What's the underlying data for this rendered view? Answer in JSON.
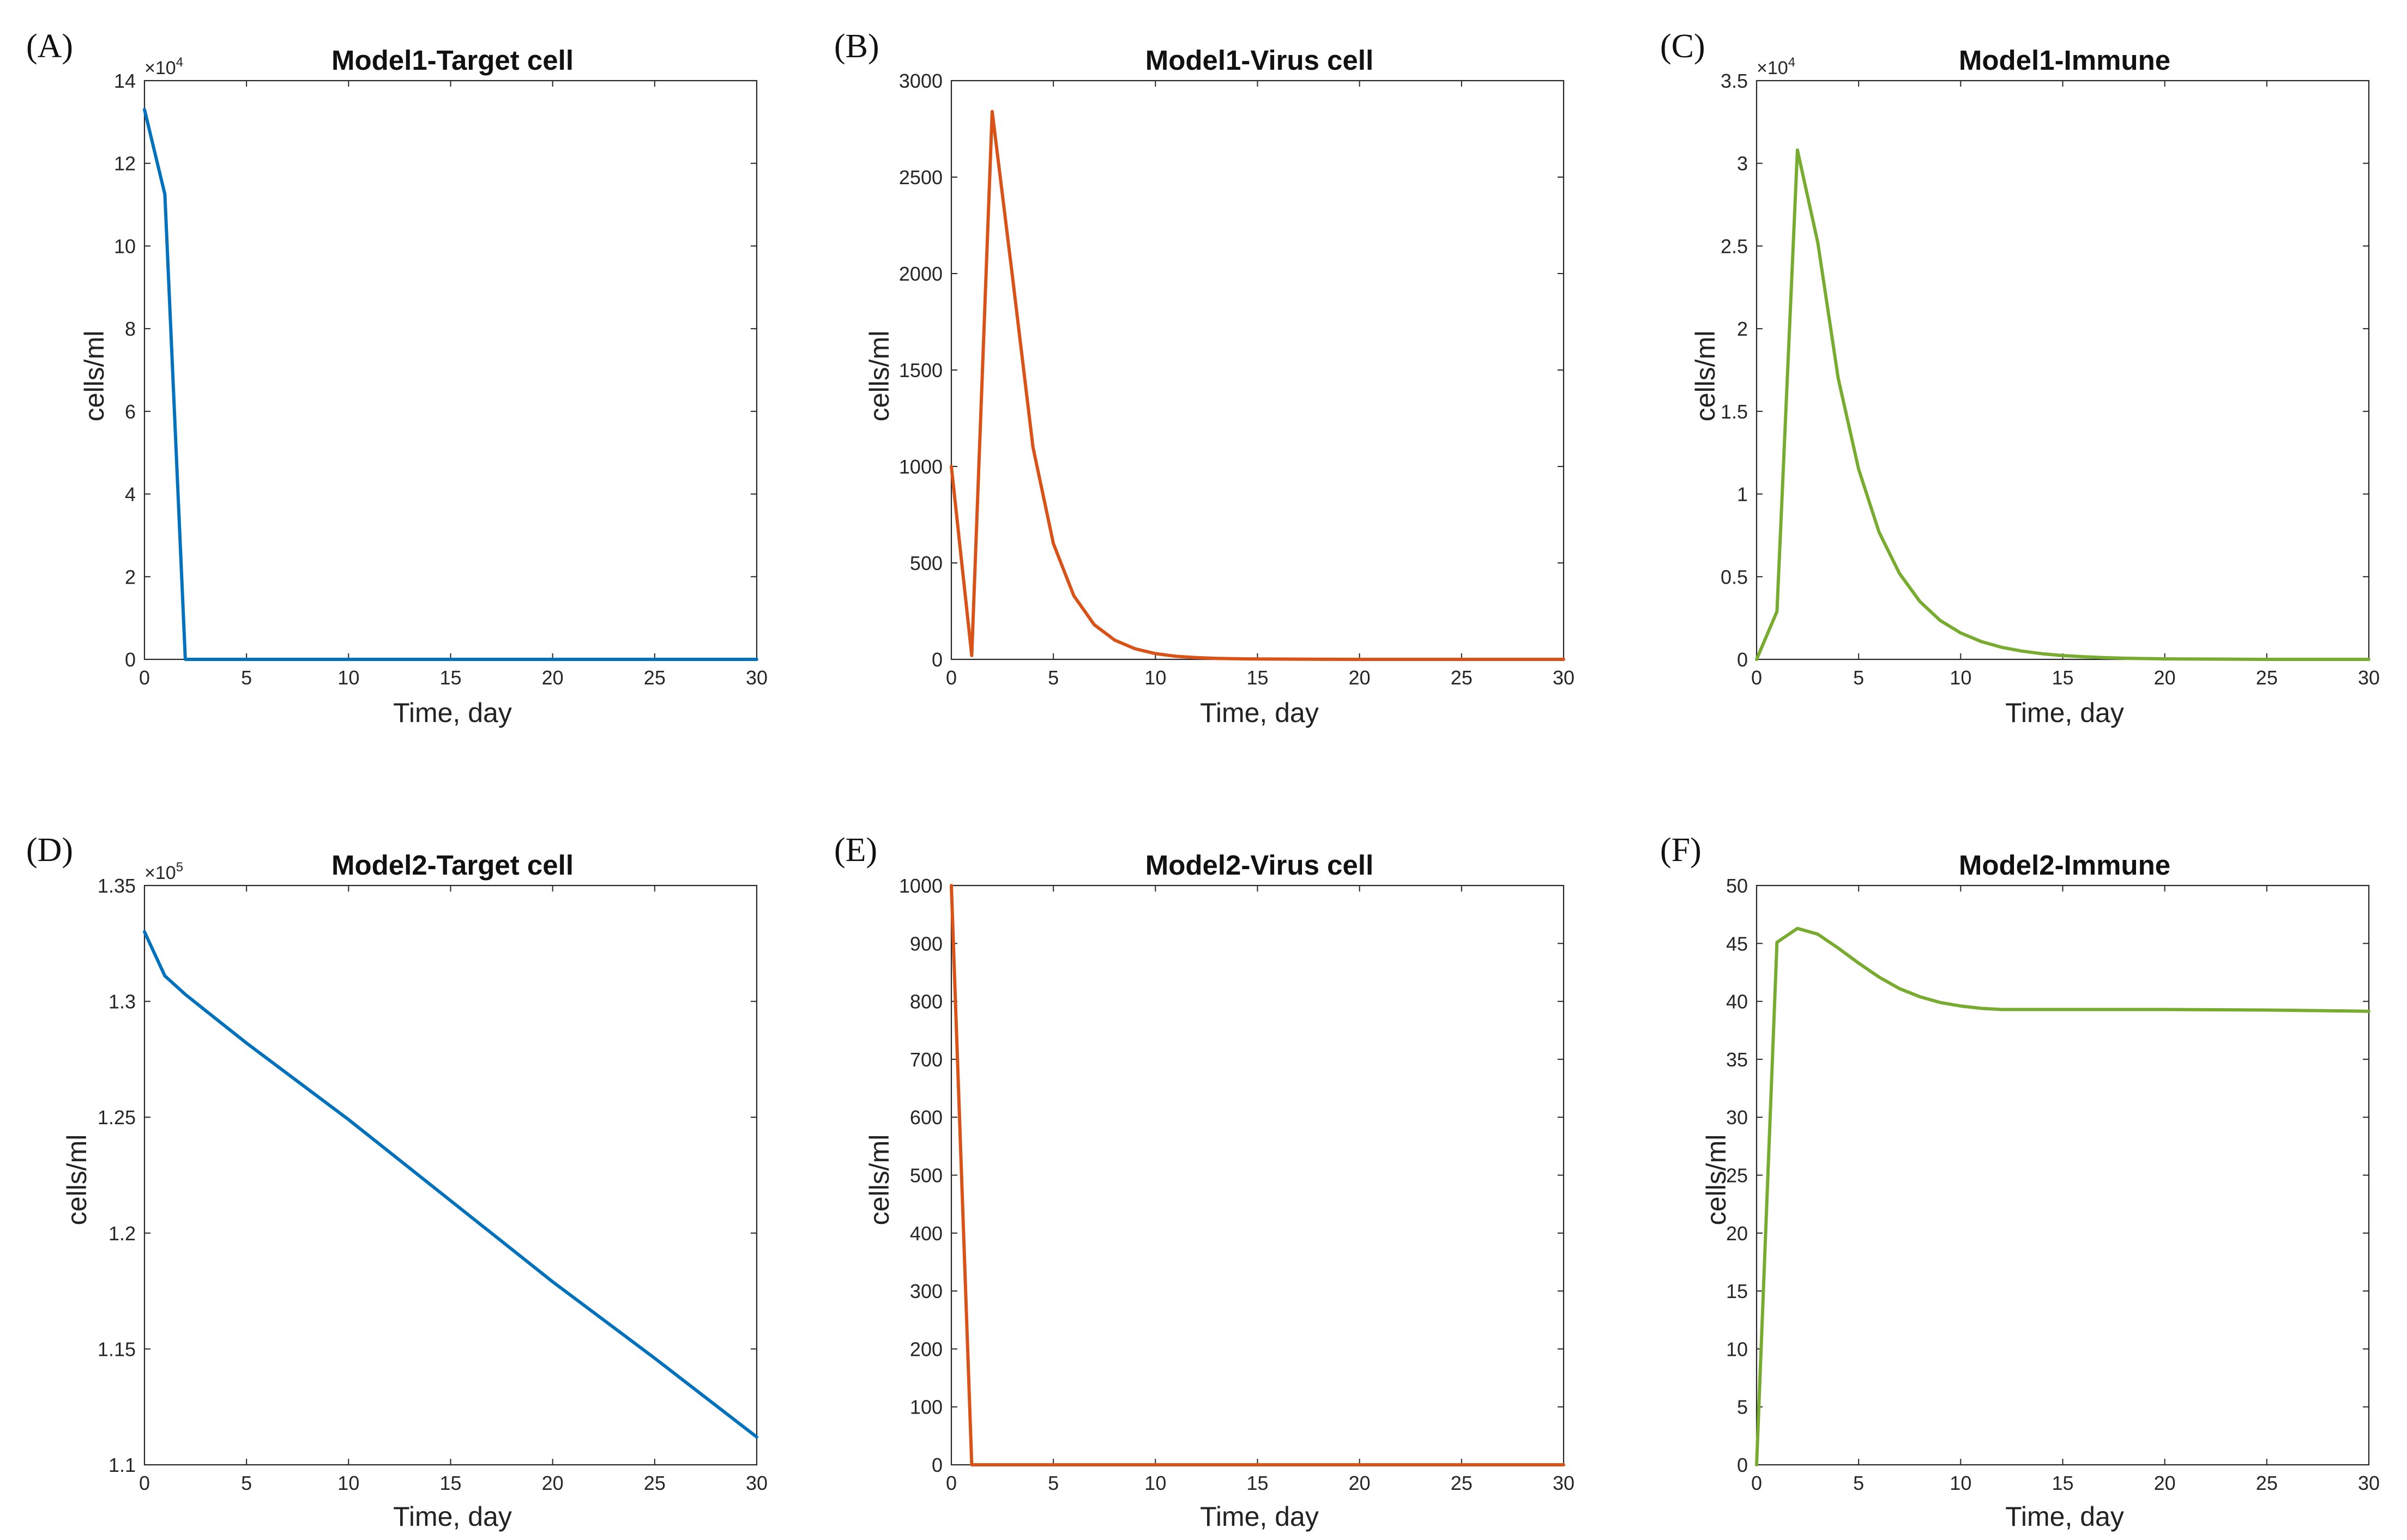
{
  "figure": {
    "panels": [
      {
        "letter": "(A)",
        "title": "Model1-Target cell",
        "ylabel": "cells/ml",
        "xlabel": "Time, day"
      },
      {
        "letter": "(B)",
        "title": "Model1-Virus cell",
        "ylabel": "cells/ml",
        "xlabel": "Time, day"
      },
      {
        "letter": "(C)",
        "title": "Model1-Immune",
        "ylabel": "cells/ml",
        "xlabel": "Time, day"
      },
      {
        "letter": "(D)",
        "title": "Model2-Target cell",
        "ylabel": "cells/ml",
        "xlabel": "Time, day"
      },
      {
        "letter": "(E)",
        "title": "Model2-Virus cell",
        "ylabel": "cells/ml",
        "xlabel": "Time, day"
      },
      {
        "letter": "(F)",
        "title": "Model2-Immune",
        "ylabel": "cells/ml",
        "xlabel": "Time, day"
      }
    ]
  },
  "colors": {
    "blue": "#0072BD",
    "orange": "#D95319",
    "green": "#77AC30",
    "axis": "#262626"
  },
  "chart_data": [
    {
      "type": "line",
      "title": "Model1-Target cell",
      "xlabel": "Time, day",
      "ylabel": "cells/ml",
      "xlim": [
        0,
        30
      ],
      "ylim": [
        0,
        140000
      ],
      "xticks": [
        0,
        5,
        10,
        15,
        20,
        25,
        30
      ],
      "xtick_labels": [
        "0",
        "5",
        "10",
        "15",
        "20",
        "25",
        "30"
      ],
      "yticks": [
        0,
        20000,
        40000,
        60000,
        80000,
        100000,
        120000,
        140000
      ],
      "ytick_labels": [
        "0",
        "2",
        "4",
        "6",
        "8",
        "10",
        "12",
        "14"
      ],
      "exponent_base": "×10",
      "exponent_power": "4",
      "color": "#0072BD",
      "series": [
        {
          "name": "Target cell",
          "x": [
            0,
            1,
            2,
            3,
            30
          ],
          "y": [
            133000,
            112500,
            0,
            0,
            0
          ]
        }
      ]
    },
    {
      "type": "line",
      "title": "Model1-Virus cell",
      "xlabel": "Time, day",
      "ylabel": "cells/ml",
      "xlim": [
        0,
        30
      ],
      "ylim": [
        0,
        3000
      ],
      "xticks": [
        0,
        5,
        10,
        15,
        20,
        25,
        30
      ],
      "xtick_labels": [
        "0",
        "5",
        "10",
        "15",
        "20",
        "25",
        "30"
      ],
      "yticks": [
        0,
        500,
        1000,
        1500,
        2000,
        2500,
        3000
      ],
      "ytick_labels": [
        "0",
        "500",
        "1000",
        "1500",
        "2000",
        "2500",
        "3000"
      ],
      "color": "#D95319",
      "series": [
        {
          "name": "Virus cell",
          "x": [
            0,
            1,
            2,
            3,
            4,
            5,
            6,
            7,
            8,
            9,
            10,
            11,
            12,
            13,
            14,
            15,
            20,
            25,
            30
          ],
          "y": [
            1000,
            20,
            2840,
            1980,
            1100,
            600,
            330,
            180,
            100,
            55,
            30,
            16,
            9,
            5,
            3,
            2,
            0,
            0,
            0
          ]
        }
      ]
    },
    {
      "type": "line",
      "title": "Model1-Immune",
      "xlabel": "Time, day",
      "ylabel": "cells/ml",
      "xlim": [
        0,
        30
      ],
      "ylim": [
        0,
        35000
      ],
      "xticks": [
        0,
        5,
        10,
        15,
        20,
        25,
        30
      ],
      "xtick_labels": [
        "0",
        "5",
        "10",
        "15",
        "20",
        "25",
        "30"
      ],
      "yticks": [
        0,
        5000,
        10000,
        15000,
        20000,
        25000,
        30000,
        35000
      ],
      "ytick_labels": [
        "0",
        "0.5",
        "1",
        "1.5",
        "2",
        "2.5",
        "3",
        "3.5"
      ],
      "exponent_base": "×10",
      "exponent_power": "4",
      "color": "#77AC30",
      "series": [
        {
          "name": "Immune",
          "x": [
            0,
            1,
            2,
            3,
            4,
            5,
            6,
            7,
            8,
            9,
            10,
            11,
            12,
            13,
            14,
            15,
            16,
            17,
            18,
            20,
            25,
            30
          ],
          "y": [
            0,
            2900,
            30800,
            25200,
            17000,
            11500,
            7700,
            5200,
            3500,
            2350,
            1600,
            1080,
            730,
            500,
            340,
            230,
            160,
            110,
            70,
            30,
            0,
            0
          ]
        }
      ]
    },
    {
      "type": "line",
      "title": "Model2-Target cell",
      "xlabel": "Time, day",
      "ylabel": "cells/ml",
      "xlim": [
        0,
        30
      ],
      "ylim": [
        110000,
        135000
      ],
      "xticks": [
        0,
        5,
        10,
        15,
        20,
        25,
        30
      ],
      "xtick_labels": [
        "0",
        "5",
        "10",
        "15",
        "20",
        "25",
        "30"
      ],
      "yticks": [
        110000,
        115000,
        120000,
        125000,
        130000,
        135000
      ],
      "ytick_labels": [
        "1.1",
        "1.15",
        "1.2",
        "1.25",
        "1.3",
        "1.35"
      ],
      "exponent_base": "×10",
      "exponent_power": "5",
      "color": "#0072BD",
      "series": [
        {
          "name": "Target cell",
          "x": [
            0,
            1,
            2,
            3,
            4,
            5,
            10,
            15,
            20,
            25,
            30
          ],
          "y": [
            133000,
            131100,
            130300,
            129600,
            128900,
            128200,
            124900,
            121400,
            117900,
            114600,
            111200
          ]
        }
      ]
    },
    {
      "type": "line",
      "title": "Model2-Virus cell",
      "xlabel": "Time, day",
      "ylabel": "cells/ml",
      "xlim": [
        0,
        30
      ],
      "ylim": [
        0,
        1000
      ],
      "xticks": [
        0,
        5,
        10,
        15,
        20,
        25,
        30
      ],
      "xtick_labels": [
        "0",
        "5",
        "10",
        "15",
        "20",
        "25",
        "30"
      ],
      "yticks": [
        0,
        100,
        200,
        300,
        400,
        500,
        600,
        700,
        800,
        900,
        1000
      ],
      "ytick_labels": [
        "0",
        "100",
        "200",
        "300",
        "400",
        "500",
        "600",
        "700",
        "800",
        "900",
        "1000"
      ],
      "color": "#D95319",
      "series": [
        {
          "name": "Virus cell",
          "x": [
            0,
            1,
            2,
            30
          ],
          "y": [
            1000,
            0,
            0,
            0
          ]
        }
      ]
    },
    {
      "type": "line",
      "title": "Model2-Immune",
      "xlabel": "Time, day",
      "ylabel": "cells/ml",
      "xlim": [
        0,
        30
      ],
      "ylim": [
        0,
        50
      ],
      "xticks": [
        0,
        5,
        10,
        15,
        20,
        25,
        30
      ],
      "xtick_labels": [
        "0",
        "5",
        "10",
        "15",
        "20",
        "25",
        "30"
      ],
      "yticks": [
        0,
        5,
        10,
        15,
        20,
        25,
        30,
        35,
        40,
        45,
        50
      ],
      "ytick_labels": [
        "0",
        "5",
        "10",
        "15",
        "20",
        "25",
        "30",
        "35",
        "40",
        "45",
        "50"
      ],
      "color": "#77AC30",
      "series": [
        {
          "name": "Immune",
          "x": [
            0,
            1,
            2,
            3,
            4,
            5,
            6,
            7,
            8,
            9,
            10,
            11,
            12,
            13,
            15,
            20,
            25,
            30
          ],
          "y": [
            0,
            45.1,
            46.3,
            45.8,
            44.6,
            43.3,
            42.1,
            41.1,
            40.4,
            39.9,
            39.6,
            39.4,
            39.3,
            39.3,
            39.3,
            39.3,
            39.25,
            39.15
          ]
        }
      ]
    }
  ]
}
